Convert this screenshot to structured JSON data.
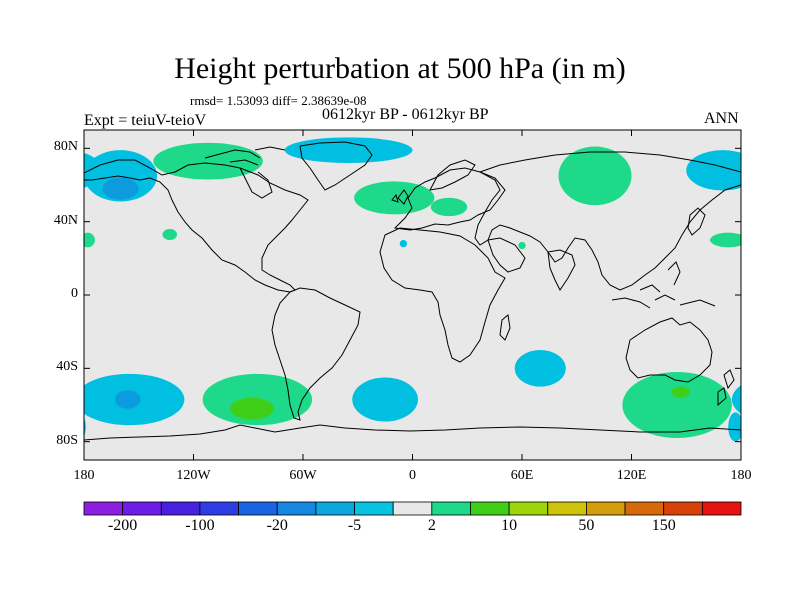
{
  "title": "Height perturbation at 500 hPa (in m)",
  "stats": "rmsd= 1.53093  diff= 2.38639e-08",
  "experiment": "Expt = teiuV-teioV",
  "period": "0612kyr BP - 0612kyr BP",
  "season": "ANN",
  "map": {
    "lat_ticks": [
      {
        "v": 80,
        "label": "80N"
      },
      {
        "v": 40,
        "label": "40N"
      },
      {
        "v": 0,
        "label": "0"
      },
      {
        "v": -40,
        "label": "40S"
      },
      {
        "v": -80,
        "label": "80S"
      }
    ],
    "lon_ticks": [
      {
        "v": -180,
        "label": "180"
      },
      {
        "v": -120,
        "label": "120W"
      },
      {
        "v": -60,
        "label": "60W"
      },
      {
        "v": 0,
        "label": "0"
      },
      {
        "v": 60,
        "label": "60E"
      },
      {
        "v": 120,
        "label": "120E"
      },
      {
        "v": 180,
        "label": "180"
      }
    ],
    "background_color": "#e8e8e8",
    "anomaly_regions": [
      {
        "level": "-5..-2",
        "color": "#00bfe0",
        "lon": -160,
        "lat": 65,
        "rlon": 20,
        "rlat": 14
      },
      {
        "level": "-20..-5",
        "color": "#0c9bdc",
        "lon": -160,
        "lat": 58,
        "rlon": 10,
        "rlat": 6
      },
      {
        "level": "2..10",
        "color": "#1ed98a",
        "lon": -112,
        "lat": 73,
        "rlon": 30,
        "rlat": 10
      },
      {
        "level": "2..10",
        "color": "#1ed98a",
        "lon": -178,
        "lat": 30,
        "rlon": 4,
        "rlat": 4
      },
      {
        "level": "2..10",
        "color": "#1ed98a",
        "lon": -133,
        "lat": 33,
        "rlon": 4,
        "rlat": 3
      },
      {
        "level": "-5..-2",
        "color": "#00bfe0",
        "lon": -35,
        "lat": 79,
        "rlon": 35,
        "rlat": 7
      },
      {
        "level": "2..10",
        "color": "#1ed98a",
        "lon": -10,
        "lat": 53,
        "rlon": 22,
        "rlat": 9
      },
      {
        "level": "2..10",
        "color": "#1ed98a",
        "lon": 20,
        "lat": 48,
        "rlon": 10,
        "rlat": 5
      },
      {
        "level": "-5..-2",
        "color": "#00bfe0",
        "lon": -5,
        "lat": 28,
        "rlon": 2,
        "rlat": 2
      },
      {
        "level": "2..10",
        "color": "#1ed98a",
        "lon": 60,
        "lat": 27,
        "rlon": 2,
        "rlat": 2
      },
      {
        "level": "2..10",
        "color": "#1ed98a",
        "lon": 100,
        "lat": 65,
        "rlon": 20,
        "rlat": 16
      },
      {
        "level": "-5..-2",
        "color": "#00bfe0",
        "lon": 170,
        "lat": 68,
        "rlon": 20,
        "rlat": 11
      },
      {
        "level": "2..10",
        "color": "#1ed98a",
        "lon": 173,
        "lat": 30,
        "rlon": 10,
        "rlat": 4
      },
      {
        "level": "-5..-2",
        "color": "#00bfe0",
        "lon": -155,
        "lat": -57,
        "rlon": 30,
        "rlat": 14
      },
      {
        "level": "-20..-5",
        "color": "#0c9bdc",
        "lon": -156,
        "lat": -57,
        "rlon": 7,
        "rlat": 5
      },
      {
        "level": "2..10",
        "color": "#1ed98a",
        "lon": -85,
        "lat": -57,
        "rlon": 30,
        "rlat": 14
      },
      {
        "level": "10..20",
        "color": "#3fcf18",
        "lon": -88,
        "lat": -62,
        "rlon": 12,
        "rlat": 6
      },
      {
        "level": "-5..-2",
        "color": "#00bfe0",
        "lon": -15,
        "lat": -57,
        "rlon": 18,
        "rlat": 12
      },
      {
        "level": "-5..-2",
        "color": "#00bfe0",
        "lon": 70,
        "lat": -40,
        "rlon": 14,
        "rlat": 10
      },
      {
        "level": "2..10",
        "color": "#1ed98a",
        "lon": 145,
        "lat": -60,
        "rlon": 30,
        "rlat": 18
      },
      {
        "level": "10..20",
        "color": "#3fcf18",
        "lon": 147,
        "lat": -53,
        "rlon": 5,
        "rlat": 3
      },
      {
        "level": "-5..-2",
        "color": "#00bfe0",
        "lon": 177,
        "lat": -72,
        "rlon": 4,
        "rlat": 8
      }
    ]
  },
  "colorbar": {
    "colors": [
      "#8c1ee0",
      "#6a1ee6",
      "#4820e0",
      "#2e3ce6",
      "#1a64e4",
      "#1488e0",
      "#0ba6dc",
      "#08c2e2",
      "#e8e8e8",
      "#1ed98a",
      "#3fcf18",
      "#9cd60a",
      "#cec20a",
      "#d29c0a",
      "#d66a0a",
      "#d8420a",
      "#e61410"
    ],
    "labels": [
      {
        "index": 1,
        "text": "-200"
      },
      {
        "index": 3,
        "text": "-100"
      },
      {
        "index": 5,
        "text": "-20"
      },
      {
        "index": 7,
        "text": "-5"
      },
      {
        "index": 9,
        "text": "2"
      },
      {
        "index": 11,
        "text": "10"
      },
      {
        "index": 13,
        "text": "50"
      },
      {
        "index": 15,
        "text": "150"
      }
    ]
  }
}
